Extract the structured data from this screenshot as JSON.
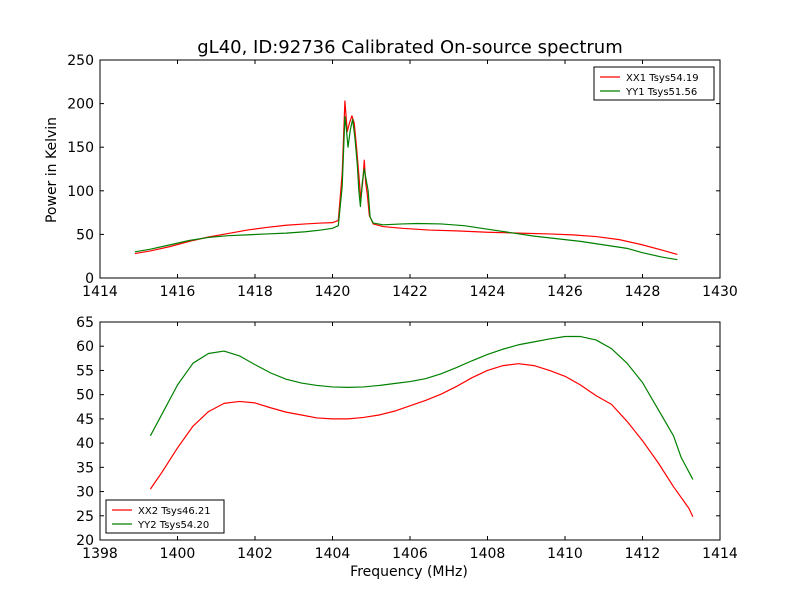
{
  "figure": {
    "title": "gL40, ID:92736 Calibrated On-source spectrum",
    "xlabel_bottom": "Frequency (MHz)",
    "ylabel_top": "Power in Kelvin"
  },
  "chart_data": [
    {
      "type": "line",
      "title": "gL40, ID:92736 Calibrated On-source spectrum",
      "xlabel": "",
      "ylabel": "Power in Kelvin",
      "xlim": [
        1414,
        1430
      ],
      "ylim": [
        0,
        250
      ],
      "xticks": [
        1414,
        1416,
        1418,
        1420,
        1422,
        1424,
        1426,
        1428,
        1430
      ],
      "yticks": [
        0,
        50,
        100,
        150,
        200,
        250
      ],
      "grid": false,
      "legend_position": "top-right",
      "series": [
        {
          "name": "XX1 Tsys54.19",
          "color": "#ff0000",
          "points": [
            [
              1414.9,
              28
            ],
            [
              1415.3,
              31
            ],
            [
              1415.8,
              36
            ],
            [
              1416.3,
              42
            ],
            [
              1416.8,
              47
            ],
            [
              1417.3,
              51
            ],
            [
              1417.8,
              55
            ],
            [
              1418.3,
              58
            ],
            [
              1418.8,
              60.5
            ],
            [
              1419.3,
              62
            ],
            [
              1419.7,
              63
            ],
            [
              1420.0,
              63.5
            ],
            [
              1420.15,
              66
            ],
            [
              1420.25,
              120
            ],
            [
              1420.32,
              203
            ],
            [
              1420.38,
              168
            ],
            [
              1420.44,
              178
            ],
            [
              1420.5,
              186
            ],
            [
              1420.56,
              178
            ],
            [
              1420.62,
              150
            ],
            [
              1420.68,
              118
            ],
            [
              1420.73,
              90
            ],
            [
              1420.78,
              110
            ],
            [
              1420.82,
              135
            ],
            [
              1420.86,
              108
            ],
            [
              1420.9,
              95
            ],
            [
              1420.95,
              72
            ],
            [
              1421.05,
              62
            ],
            [
              1421.3,
              59
            ],
            [
              1421.8,
              57
            ],
            [
              1422.5,
              55
            ],
            [
              1423.2,
              54
            ],
            [
              1424.0,
              52.5
            ],
            [
              1424.8,
              51.5
            ],
            [
              1425.6,
              50.5
            ],
            [
              1426.2,
              49.5
            ],
            [
              1426.8,
              47.5
            ],
            [
              1427.4,
              44
            ],
            [
              1428.0,
              38
            ],
            [
              1428.5,
              32
            ],
            [
              1428.9,
              27
            ]
          ]
        },
        {
          "name": "YY1 Tsys51.56",
          "color": "#008000",
          "points": [
            [
              1414.9,
              30
            ],
            [
              1415.3,
              33
            ],
            [
              1415.8,
              38
            ],
            [
              1416.3,
              43
            ],
            [
              1416.8,
              46.5
            ],
            [
              1417.3,
              48.5
            ],
            [
              1417.8,
              49.5
            ],
            [
              1418.3,
              50.5
            ],
            [
              1418.8,
              51.5
            ],
            [
              1419.3,
              53
            ],
            [
              1419.7,
              55
            ],
            [
              1420.0,
              57
            ],
            [
              1420.15,
              60
            ],
            [
              1420.25,
              105
            ],
            [
              1420.32,
              185
            ],
            [
              1420.36,
              170
            ],
            [
              1420.4,
              150
            ],
            [
              1420.46,
              170
            ],
            [
              1420.52,
              182
            ],
            [
              1420.58,
              160
            ],
            [
              1420.64,
              130
            ],
            [
              1420.68,
              100
            ],
            [
              1420.72,
              82
            ],
            [
              1420.77,
              110
            ],
            [
              1420.82,
              125
            ],
            [
              1420.86,
              115
            ],
            [
              1420.92,
              100
            ],
            [
              1420.97,
              70
            ],
            [
              1421.05,
              63
            ],
            [
              1421.3,
              61
            ],
            [
              1421.8,
              62
            ],
            [
              1422.2,
              62.5
            ],
            [
              1422.8,
              62
            ],
            [
              1423.4,
              60
            ],
            [
              1424.0,
              56
            ],
            [
              1424.6,
              52
            ],
            [
              1425.2,
              48
            ],
            [
              1425.8,
              45
            ],
            [
              1426.4,
              42
            ],
            [
              1427.0,
              38
            ],
            [
              1427.6,
              34
            ],
            [
              1428.0,
              29
            ],
            [
              1428.5,
              24
            ],
            [
              1428.9,
              21
            ]
          ]
        }
      ]
    },
    {
      "type": "line",
      "title": "",
      "xlabel": "Frequency (MHz)",
      "ylabel": "",
      "xlim": [
        1398,
        1414
      ],
      "ylim": [
        20,
        65
      ],
      "xticks": [
        1398,
        1400,
        1402,
        1404,
        1406,
        1408,
        1410,
        1412,
        1414
      ],
      "yticks": [
        20,
        25,
        30,
        35,
        40,
        45,
        50,
        55,
        60,
        65
      ],
      "grid": false,
      "legend_position": "bottom-left",
      "series": [
        {
          "name": "XX2 Tsys46.21",
          "color": "#ff0000",
          "points": [
            [
              1399.3,
              30.5
            ],
            [
              1399.6,
              34
            ],
            [
              1400.0,
              39
            ],
            [
              1400.4,
              43.5
            ],
            [
              1400.8,
              46.5
            ],
            [
              1401.2,
              48.2
            ],
            [
              1401.6,
              48.6
            ],
            [
              1402.0,
              48.3
            ],
            [
              1402.4,
              47.3
            ],
            [
              1402.8,
              46.4
            ],
            [
              1403.2,
              45.8
            ],
            [
              1403.6,
              45.2
            ],
            [
              1404.0,
              45.0
            ],
            [
              1404.4,
              45.0
            ],
            [
              1404.8,
              45.3
            ],
            [
              1405.2,
              45.8
            ],
            [
              1405.6,
              46.6
            ],
            [
              1406.0,
              47.7
            ],
            [
              1406.4,
              48.8
            ],
            [
              1406.8,
              50.1
            ],
            [
              1407.2,
              51.7
            ],
            [
              1407.6,
              53.5
            ],
            [
              1408.0,
              55.0
            ],
            [
              1408.4,
              56.0
            ],
            [
              1408.8,
              56.4
            ],
            [
              1409.2,
              56.0
            ],
            [
              1409.6,
              55.0
            ],
            [
              1410.0,
              53.8
            ],
            [
              1410.4,
              52.0
            ],
            [
              1410.8,
              49.8
            ],
            [
              1411.2,
              48.0
            ],
            [
              1411.6,
              44.5
            ],
            [
              1412.0,
              40.5
            ],
            [
              1412.4,
              36.0
            ],
            [
              1412.8,
              31.0
            ],
            [
              1413.2,
              26.5
            ],
            [
              1413.3,
              24.8
            ]
          ]
        },
        {
          "name": "YY2 Tsys54.20",
          "color": "#008000",
          "points": [
            [
              1399.3,
              41.5
            ],
            [
              1399.6,
              46
            ],
            [
              1400.0,
              52
            ],
            [
              1400.4,
              56.5
            ],
            [
              1400.8,
              58.5
            ],
            [
              1401.2,
              59.0
            ],
            [
              1401.6,
              58.0
            ],
            [
              1402.0,
              56.2
            ],
            [
              1402.4,
              54.5
            ],
            [
              1402.8,
              53.2
            ],
            [
              1403.2,
              52.4
            ],
            [
              1403.6,
              51.9
            ],
            [
              1404.0,
              51.6
            ],
            [
              1404.4,
              51.5
            ],
            [
              1404.8,
              51.6
            ],
            [
              1405.2,
              51.9
            ],
            [
              1405.6,
              52.3
            ],
            [
              1406.0,
              52.7
            ],
            [
              1406.4,
              53.3
            ],
            [
              1406.8,
              54.3
            ],
            [
              1407.2,
              55.6
            ],
            [
              1407.6,
              57.0
            ],
            [
              1408.0,
              58.3
            ],
            [
              1408.4,
              59.4
            ],
            [
              1408.8,
              60.3
            ],
            [
              1409.2,
              60.9
            ],
            [
              1409.6,
              61.5
            ],
            [
              1410.0,
              62.0
            ],
            [
              1410.4,
              62.0
            ],
            [
              1410.8,
              61.3
            ],
            [
              1411.2,
              59.5
            ],
            [
              1411.6,
              56.5
            ],
            [
              1412.0,
              52.5
            ],
            [
              1412.4,
              47.0
            ],
            [
              1412.8,
              41.5
            ],
            [
              1413.0,
              37.0
            ],
            [
              1413.3,
              32.5
            ]
          ]
        }
      ]
    }
  ]
}
